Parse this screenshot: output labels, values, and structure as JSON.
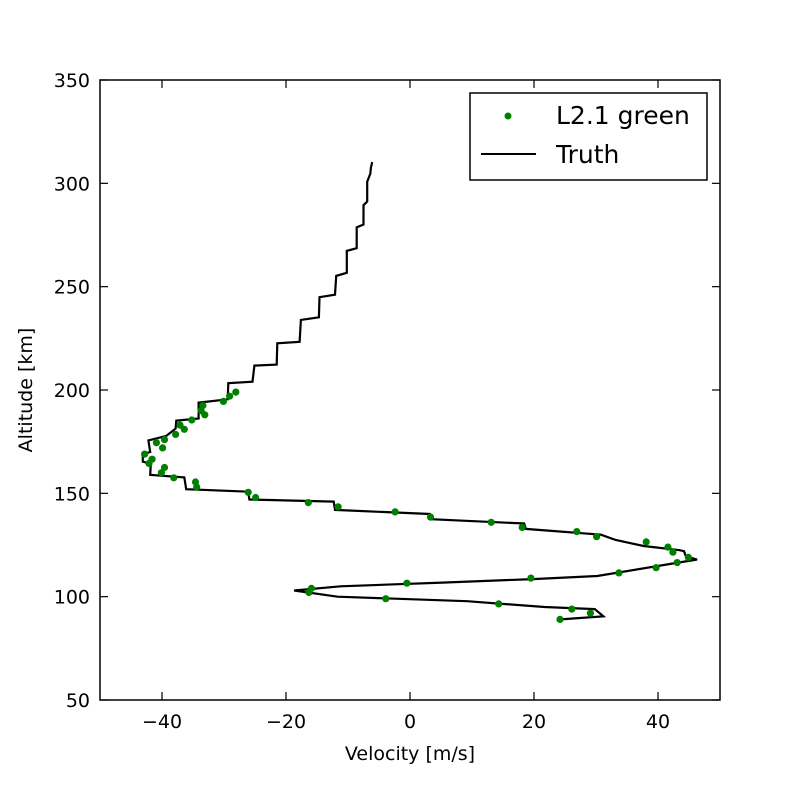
{
  "chart_data": {
    "type": "scatter",
    "title": "",
    "xlabel": "Velocity [m/s]",
    "ylabel": "Altitude [km]",
    "xlim": [
      -50,
      50
    ],
    "ylim": [
      50,
      350
    ],
    "xticks": [
      -40,
      -20,
      0,
      20,
      40
    ],
    "yticks": [
      50,
      100,
      150,
      200,
      250,
      300,
      350
    ],
    "grid": false,
    "legend_position": "top-right",
    "colors": {
      "points": "#008000",
      "line": "#000000"
    },
    "series": [
      {
        "name": "L2.1 green",
        "type": "scatter",
        "points": [
          [
            24.2,
            89
          ],
          [
            29.1,
            92
          ],
          [
            26.1,
            94
          ],
          [
            14.3,
            96.5
          ],
          [
            -3.9,
            99
          ],
          [
            -16.3,
            102
          ],
          [
            -15.9,
            104
          ],
          [
            -0.5,
            106.5
          ],
          [
            19.5,
            109
          ],
          [
            33.7,
            111.5
          ],
          [
            39.7,
            114
          ],
          [
            43.1,
            116.5
          ],
          [
            44.9,
            119
          ],
          [
            42.4,
            121.5
          ],
          [
            41.6,
            124
          ],
          [
            38.1,
            126.5
          ],
          [
            30.1,
            129
          ],
          [
            26.9,
            131.5
          ],
          [
            18.1,
            133.5
          ],
          [
            13.1,
            136
          ],
          [
            3.3,
            138.5
          ],
          [
            -2.4,
            141
          ],
          [
            -11.6,
            143.5
          ],
          [
            -16.4,
            145.5
          ],
          [
            -24.9,
            148
          ],
          [
            -26.1,
            150.5
          ],
          [
            -34.4,
            153
          ],
          [
            -34.6,
            155.5
          ],
          [
            -38.1,
            157.5
          ],
          [
            -40.1,
            160
          ],
          [
            -39.6,
            162.5
          ],
          [
            -42.1,
            164.5
          ],
          [
            -41.6,
            166.5
          ],
          [
            -42.8,
            169
          ],
          [
            -39.9,
            172
          ],
          [
            -40.9,
            174.5
          ],
          [
            -39.6,
            176
          ],
          [
            -37.8,
            178.5
          ],
          [
            -36.4,
            181
          ],
          [
            -37.1,
            183
          ],
          [
            -35.2,
            185.5
          ],
          [
            -33.1,
            188
          ],
          [
            -33.7,
            190
          ],
          [
            -33.4,
            192.5
          ],
          [
            -30.1,
            194.5
          ],
          [
            -29.1,
            197
          ],
          [
            -28.1,
            199
          ]
        ]
      },
      {
        "name": "Truth",
        "type": "line",
        "points": [
          [
            24.3,
            89
          ],
          [
            31.2,
            90.5
          ],
          [
            29.8,
            94
          ],
          [
            21.7,
            95
          ],
          [
            9.2,
            97.8
          ],
          [
            -11.7,
            100
          ],
          [
            -18.7,
            103
          ],
          [
            -11.2,
            105
          ],
          [
            5.2,
            106.8
          ],
          [
            19.8,
            108.5
          ],
          [
            30.2,
            110
          ],
          [
            46.3,
            118
          ],
          [
            44.5,
            119.5
          ],
          [
            44.2,
            122
          ],
          [
            43.5,
            122.5
          ],
          [
            37.7,
            124.5
          ],
          [
            33.1,
            127.5
          ],
          [
            30.8,
            130
          ],
          [
            18.7,
            132.8
          ],
          [
            18.4,
            135.4
          ],
          [
            3.4,
            137.5
          ],
          [
            3.2,
            140
          ],
          [
            -12.1,
            142
          ],
          [
            -12.3,
            146
          ],
          [
            -25.9,
            147
          ],
          [
            -26.1,
            150.8
          ],
          [
            -36.1,
            152
          ],
          [
            -36.4,
            157.7
          ],
          [
            -41.9,
            158.9
          ],
          [
            -41.8,
            164.3
          ],
          [
            -43.1,
            165.3
          ],
          [
            -43.1,
            169
          ],
          [
            -41.9,
            170
          ],
          [
            -42.2,
            175.6
          ],
          [
            -39.3,
            177.8
          ],
          [
            -37.8,
            181.3
          ],
          [
            -37.7,
            185.2
          ],
          [
            -34.1,
            186.2
          ],
          [
            -34.1,
            193.9
          ],
          [
            -29.4,
            195.5
          ],
          [
            -29.3,
            203.3
          ],
          [
            -25.4,
            204
          ],
          [
            -25.1,
            211.8
          ],
          [
            -21.5,
            212.3
          ],
          [
            -21.4,
            222.6
          ],
          [
            -17.8,
            223.3
          ],
          [
            -17.6,
            233.9
          ],
          [
            -14.7,
            235.2
          ],
          [
            -14.6,
            244.9
          ],
          [
            -12.1,
            246.1
          ],
          [
            -11.9,
            255.2
          ],
          [
            -10.2,
            256.7
          ],
          [
            -10.2,
            267.3
          ],
          [
            -8.6,
            268.6
          ],
          [
            -8.6,
            278.7
          ],
          [
            -7.5,
            280.1
          ],
          [
            -7.5,
            289.4
          ],
          [
            -6.9,
            291.2
          ],
          [
            -6.9,
            300.8
          ],
          [
            -6.4,
            304.6
          ],
          [
            -6.3,
            307.5
          ],
          [
            -6.1,
            310.3
          ]
        ]
      }
    ]
  }
}
